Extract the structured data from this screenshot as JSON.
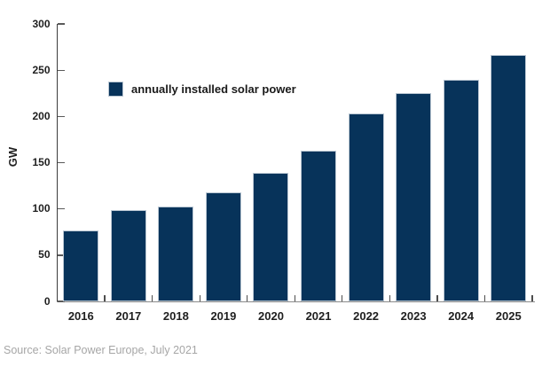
{
  "chart_data": {
    "type": "bar",
    "categories": [
      "2016",
      "2017",
      "2018",
      "2019",
      "2020",
      "2021",
      "2022",
      "2023",
      "2024",
      "2025"
    ],
    "values": [
      77,
      99,
      103,
      118,
      139,
      163,
      203,
      225,
      240,
      266
    ],
    "title": "",
    "xlabel": "",
    "ylabel": "GW",
    "ylim": [
      0,
      300
    ],
    "yticks": [
      0,
      50,
      100,
      150,
      200,
      250,
      300
    ],
    "grid": false,
    "legend": {
      "label": "annually installed solar power",
      "position": "inside-upper-left"
    },
    "bar_color": "#07335a",
    "bar_border_color": "#b9c6d2"
  },
  "source_note": "Source: Solar Power Europe, July 2021",
  "colors": {
    "background": "#ffffff",
    "y_axis": "#3c3c3c",
    "x_axis": "#8a8a8a",
    "tick": "#5a5a5a",
    "label_text": "#1f1f1f",
    "source_text": "#a6a6a6"
  }
}
